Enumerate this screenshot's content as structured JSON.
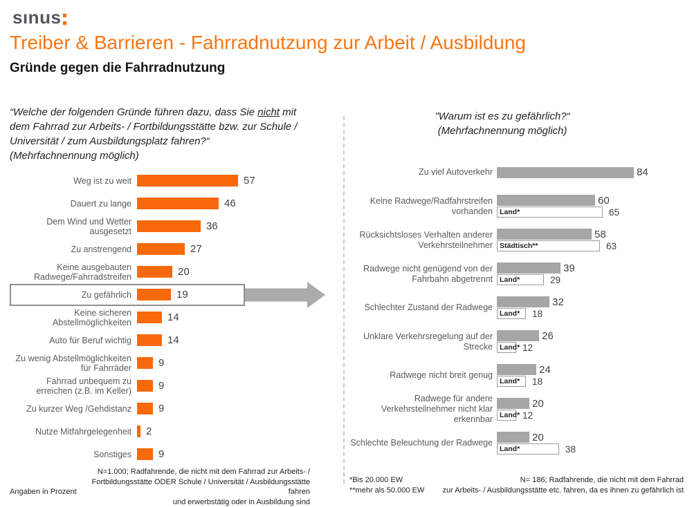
{
  "header": {
    "logo": "sınus",
    "title": "Treiber & Barrieren - Fahrradnutzung zur Arbeit / Ausbildung",
    "subtitle": "Gründe gegen die Fahrradnutzung"
  },
  "left": {
    "question_prefix": "“Welche der folgenden Gründe führen dazu, dass Sie ",
    "question_underlined": "nicht",
    "question_suffix": " mit dem Fahrrad zur Arbeits- / Fortbildungsstätte bzw. zur Schule / Universität / zum Ausbildungsplatz fahren?“",
    "question_note": "(Mehrfachnennung möglich)",
    "footnote_lines": [
      "N=1.000; Radfahrende, die nicht mit dem Fahrrad zur Arbeits- /",
      "Fortbildungsstätte ODER Schule / Universität / Ausbildungsstätte fahren",
      "und erwerbstätig oder in Ausbildung sind"
    ],
    "unit_note": "Angaben in Prozent"
  },
  "right": {
    "title_line1": "\"Warum ist es zu gefährlich?“",
    "title_line2": "(Mehrfachnennung möglich)",
    "footnote_star_lines": [
      "*Bis 20.000 EW",
      "**mehr als 50.000 EW"
    ],
    "footnote_n_lines": [
      "N= 186; Radfahrende, die nicht mit dem Fahrrad",
      "zur Arbeits- / Ausbildungsstätte etc. fahren, da es ihnen zu gefährlich ist"
    ]
  },
  "colors": {
    "orange": "#F7690B",
    "title_orange": "#F87613",
    "bar_gray": "#A6A6A6",
    "label_gray": "#5A5A5A",
    "value_dark": "#3F3F3F",
    "arrow_gray": "#ABABAB",
    "box_border": "#8F8F8F",
    "logo_gray": "#55565A"
  },
  "chart_data": [
    {
      "type": "bar",
      "orientation": "horizontal",
      "title": "“Welche der folgenden Gründe führen dazu, dass Sie nicht mit dem Fahrrad zur Arbeits- / Fortbildungsstätte bzw. zur Schule / Universität / zum Ausbildungsplatz fahren?“ (Mehrfachnennung möglich)",
      "unit": "Prozent",
      "xlim": [
        0,
        60
      ],
      "bar_color": "#F7690B",
      "rows": [
        {
          "label": "Weg ist zu weit",
          "value": 57,
          "highlight": false
        },
        {
          "label": "Dauert zu lange",
          "value": 46,
          "highlight": false
        },
        {
          "label": "Dem Wind und Wetter ausgesetzt",
          "value": 36,
          "highlight": false
        },
        {
          "label": "Zu anstrengend",
          "value": 27,
          "highlight": false
        },
        {
          "label": "Keine ausgebauten Radwege/Fahrradstreifen",
          "value": 20,
          "highlight": false
        },
        {
          "label": "Zu gefährlich",
          "value": 19,
          "highlight": true
        },
        {
          "label": "Keine sicheren Abstellmöglichkeiten",
          "value": 14,
          "highlight": false
        },
        {
          "label": "Auto für Beruf wichtig",
          "value": 14,
          "highlight": false
        },
        {
          "label": "Zu wenig Abstellmöglichkeiten für Fahrräder",
          "value": 9,
          "highlight": false
        },
        {
          "label": "Fahrrad unbequem zu erreichen (z.B. im Keller)",
          "value": 9,
          "highlight": false
        },
        {
          "label": "Zu kurzer Weg /Gehdistanz",
          "value": 9,
          "highlight": false
        },
        {
          "label": "Nutze Mitfahrgelegenheit",
          "value": 2,
          "highlight": false
        },
        {
          "label": "Sonstiges",
          "value": 9,
          "highlight": false
        }
      ]
    },
    {
      "type": "bar",
      "orientation": "horizontal",
      "title": "\"Warum ist es zu gefährlich?“ (Mehrfachnennung möglich)",
      "unit": "Prozent",
      "xlim": [
        0,
        90
      ],
      "bar_color": "#A6A6A6",
      "rows": [
        {
          "label": "Zu viel Autoverkehr",
          "value": 84,
          "sub_label": null,
          "sub_value": null
        },
        {
          "label": "Keine Radwege/Radfahrstreifen vorhanden",
          "value": 60,
          "sub_label": "Land*",
          "sub_value": 65
        },
        {
          "label": "Rücksichtsloses Verhalten anderer Verkehrsteilnehmer",
          "value": 58,
          "sub_label": "Städtisch**",
          "sub_value": 63
        },
        {
          "label": "Radwege nicht genügend von der Fahrbahn abgetrennt",
          "value": 39,
          "sub_label": "Land*",
          "sub_value": 29
        },
        {
          "label": "Schlechter Zustand der Radwege",
          "value": 32,
          "sub_label": "Land*",
          "sub_value": 18
        },
        {
          "label": "Unklare Verkehrsregelung auf der Strecke",
          "value": 26,
          "sub_label": "Land*",
          "sub_value": 12
        },
        {
          "label": "Radwege nicht breit genug",
          "value": 24,
          "sub_label": "Land*",
          "sub_value": 18
        },
        {
          "label": "Radwege für andere Verkehrsteilnehmer nicht klar erkennbar",
          "value": 20,
          "sub_label": "Land*",
          "sub_value": 12
        },
        {
          "label": "Schlechte Beleuchtung der Radwege",
          "value": 20,
          "sub_label": "Land*",
          "sub_value": 38
        }
      ]
    }
  ]
}
